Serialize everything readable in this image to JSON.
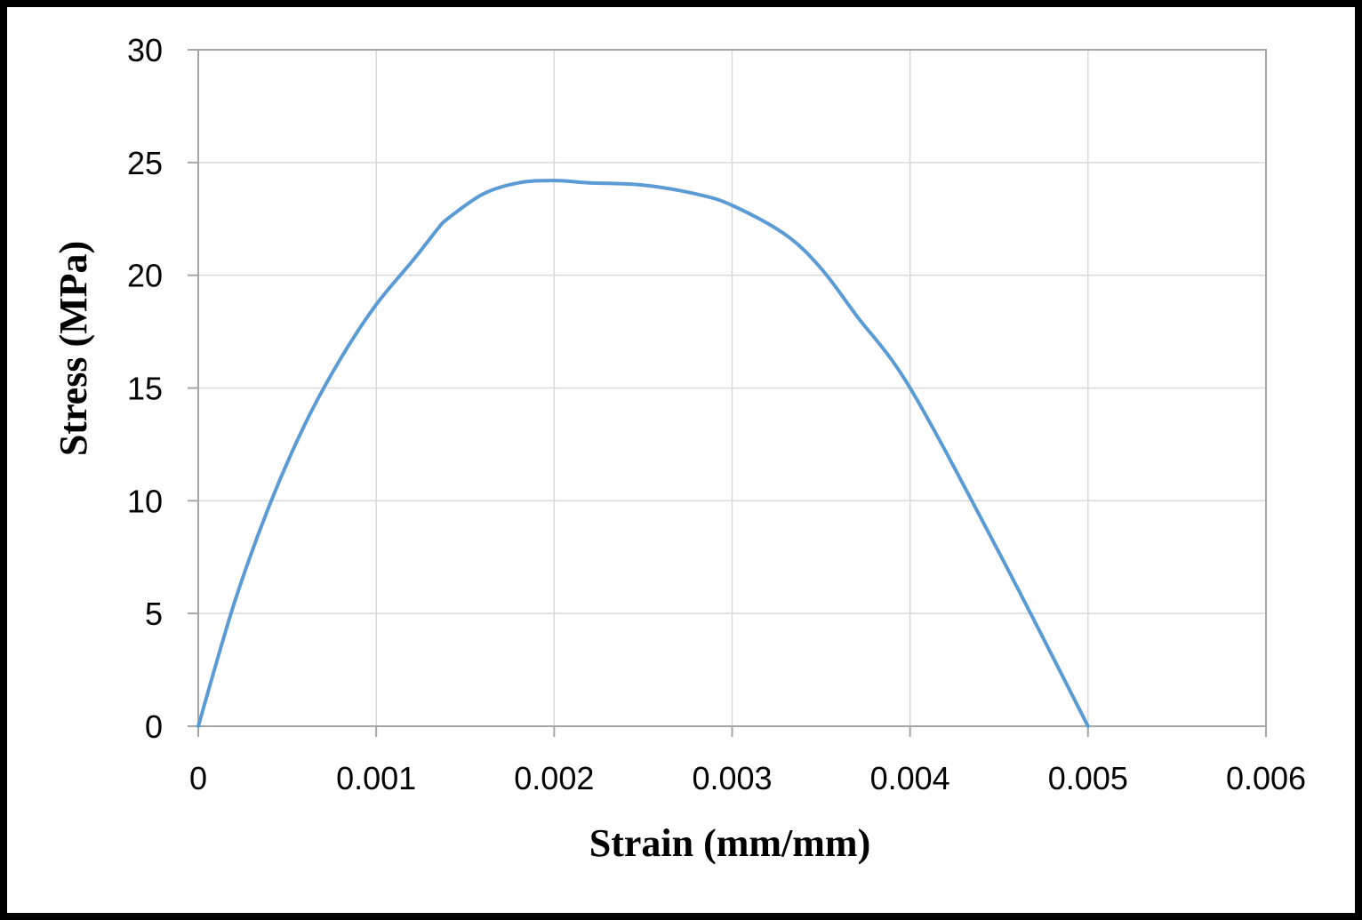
{
  "chart_data": {
    "type": "line",
    "title": "",
    "xlabel": "Strain (mm/mm)",
    "ylabel": "Stress (MPa)",
    "xlim": [
      0,
      0.006
    ],
    "ylim": [
      0,
      30
    ],
    "x_ticks": [
      "0",
      "0.001",
      "0.002",
      "0.003",
      "0.004",
      "0.005",
      "0.006"
    ],
    "y_ticks": [
      "0",
      "5",
      "10",
      "15",
      "20",
      "25",
      "30"
    ],
    "grid": true,
    "legend": "none",
    "line_color": "#5b9bd5",
    "series": [
      {
        "x": [
          0,
          0.0002,
          0.0004,
          0.0006,
          0.0008,
          0.001,
          0.0012,
          0.0013,
          0.00135,
          0.0014,
          0.0016,
          0.0018,
          0.002,
          0.0022,
          0.0025,
          0.0028,
          0.003,
          0.0033,
          0.0035,
          0.0037,
          0.004,
          0.0045,
          0.005
        ],
        "y": [
          0,
          5.4,
          9.8,
          13.4,
          16.3,
          18.7,
          20.6,
          21.6,
          22.1,
          22.5,
          23.6,
          24.1,
          24.2,
          24.1,
          24.0,
          23.6,
          23.1,
          21.8,
          20.3,
          18.2,
          15.0,
          7.7,
          0
        ]
      }
    ]
  }
}
